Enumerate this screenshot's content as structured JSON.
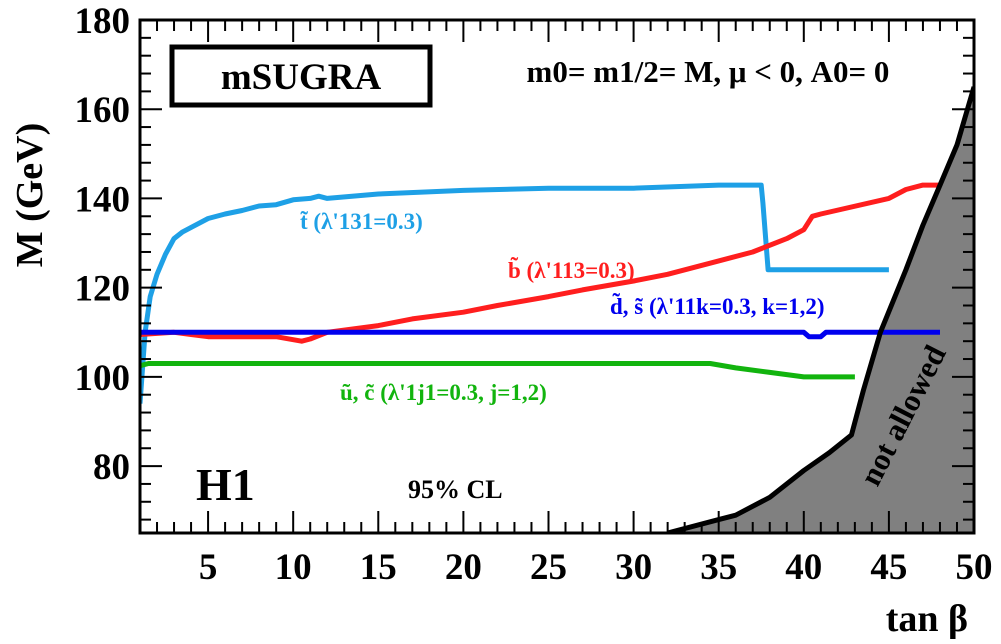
{
  "chart_data": {
    "type": "line",
    "xlabel": "tan β",
    "ylabel": "M (GeV)",
    "xlim": [
      1,
      50
    ],
    "ylim": [
      65,
      180
    ],
    "x_ticks": [
      "5",
      "10",
      "15",
      "20",
      "25",
      "30",
      "35",
      "40",
      "45",
      "50"
    ],
    "y_ticks": [
      "80",
      "100",
      "120",
      "140",
      "160",
      "180"
    ],
    "box_label": "mSUGRA",
    "equation": "m0= m1/2= M, μ < 0, A0= 0",
    "experiment": "H1",
    "confidence": "95% CL",
    "excluded_region_label": "not allowed",
    "excluded_region_boundary": {
      "x": [
        32.0,
        35.0,
        36.0,
        38.0,
        40.0,
        41.5,
        42.8,
        43.5,
        44.5,
        46.0,
        47.0,
        48.0,
        49.0,
        50.0
      ],
      "y": [
        65,
        68,
        69,
        73,
        79,
        83,
        87,
        97,
        110,
        124,
        134,
        143,
        152,
        165
      ]
    },
    "series": [
      {
        "name": "t̃ (λ'131=0.3)",
        "color": "#1ea0e6",
        "x": [
          1.0,
          1.3,
          1.6,
          2.0,
          2.5,
          3.0,
          3.5,
          4.0,
          5.0,
          6.0,
          7.0,
          8.0,
          9.0,
          10.0,
          11.0,
          11.5,
          12.0,
          15.0,
          20.0,
          25.0,
          30.0,
          35.0,
          37.5,
          37.6,
          37.9,
          45.0
        ],
        "y": [
          94.0,
          110.0,
          118.0,
          123.0,
          127.5,
          131.0,
          132.5,
          133.5,
          135.5,
          136.5,
          137.3,
          138.3,
          138.6,
          139.7,
          140.0,
          140.5,
          140.0,
          141.0,
          141.8,
          142.3,
          142.3,
          143.0,
          143.0,
          139.0,
          124.0,
          124.0
        ]
      },
      {
        "name": "b̃ (λ'113=0.3)",
        "color": "#ff1e1e",
        "x": [
          1.0,
          3.0,
          4.0,
          5.0,
          9.0,
          10.5,
          11.0,
          12.0,
          15.0,
          17.0,
          20.0,
          22.0,
          25.0,
          27.0,
          30.0,
          32.0,
          35.0,
          37.0,
          39.0,
          40.0,
          40.5,
          41.0,
          45.0,
          46.0,
          47.0,
          48.0
        ],
        "y": [
          109.5,
          110.0,
          109.5,
          109.0,
          109.0,
          108.0,
          108.5,
          110.0,
          111.5,
          113.0,
          114.5,
          116.0,
          118.0,
          119.5,
          121.5,
          123.0,
          126.0,
          128.0,
          131.0,
          133.0,
          136.0,
          136.5,
          140.0,
          142.0,
          143.0,
          143.0
        ]
      },
      {
        "name": "d̃, s̃ (λ'11k=0.3, k=1,2)",
        "color": "#0000ee",
        "x": [
          1.0,
          3.0,
          10.0,
          20.0,
          30.0,
          40.0,
          40.3,
          41.0,
          41.3,
          45.0,
          48.0
        ],
        "y": [
          110.0,
          110.0,
          110.0,
          110.0,
          110.0,
          110.0,
          109.0,
          109.0,
          110.0,
          110.0,
          110.0
        ]
      },
      {
        "name": "ũ, c̃ (λ'1j1=0.3, j=1,2)",
        "color": "#12b40e",
        "x": [
          1.0,
          1.5,
          2.5,
          10.0,
          20.0,
          30.0,
          34.5,
          36.0,
          38.0,
          40.0,
          43.0
        ],
        "y": [
          102.5,
          103.0,
          103.0,
          103.0,
          103.0,
          103.0,
          103.0,
          102.0,
          101.0,
          100.0,
          100.0
        ]
      }
    ]
  }
}
